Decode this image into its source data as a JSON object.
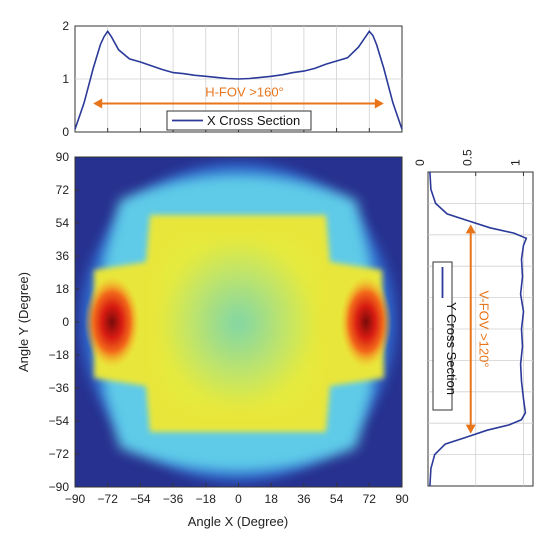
{
  "chart_data": [
    {
      "type": "line",
      "title": "",
      "xlabel": "",
      "ylabel": "",
      "xlim": [
        -90,
        90
      ],
      "ylim": [
        0,
        2
      ],
      "yticks": [
        "0",
        "1",
        "2"
      ],
      "legend": "bottom-center",
      "grid": true,
      "series": [
        {
          "name": "X Cross Section",
          "color": "#2b3a99",
          "x": [
            -90,
            -85,
            -80,
            -76,
            -74,
            -72,
            -70,
            -66,
            -60,
            -54,
            -48,
            -42,
            -36,
            -30,
            -24,
            -18,
            -12,
            -6,
            0,
            6,
            12,
            18,
            24,
            30,
            36,
            42,
            48,
            54,
            60,
            66,
            70,
            72,
            74,
            76,
            80,
            85,
            90
          ],
          "y": [
            0.05,
            0.55,
            1.2,
            1.65,
            1.8,
            1.9,
            1.8,
            1.55,
            1.38,
            1.32,
            1.25,
            1.18,
            1.12,
            1.1,
            1.07,
            1.05,
            1.03,
            1.01,
            1.0,
            1.01,
            1.03,
            1.05,
            1.08,
            1.12,
            1.15,
            1.2,
            1.28,
            1.34,
            1.4,
            1.6,
            1.8,
            1.9,
            1.82,
            1.65,
            1.2,
            0.55,
            0.05
          ]
        }
      ],
      "annotation": {
        "text": "H-FOV >160°",
        "from": -80,
        "to": 80,
        "y": 0.5,
        "color": "#e8751a"
      }
    },
    {
      "type": "heatmap",
      "xlabel": "Angle X (Degree)",
      "ylabel": "Angle Y (Degree)",
      "xlim": [
        -90,
        90
      ],
      "ylim": [
        -90,
        90
      ],
      "xticks": [
        "−90",
        "−72",
        "−54",
        "−36",
        "−18",
        "0",
        "18",
        "36",
        "54",
        "72",
        "90"
      ],
      "yticks": [
        "90",
        "72",
        "54",
        "36",
        "18",
        "0",
        "−18",
        "−36",
        "−54",
        "−72",
        "−90"
      ],
      "colormap": "jet",
      "hotspots": [
        {
          "x": -70,
          "y": 0
        },
        {
          "x": 70,
          "y": 0
        }
      ]
    },
    {
      "type": "line",
      "orientation": "vertical",
      "xlim": [
        0,
        1.1
      ],
      "xticks": [
        "0",
        "0.5",
        "1"
      ],
      "ylim": [
        -90,
        90
      ],
      "grid": true,
      "legend": "left",
      "series": [
        {
          "name": "Y Cross Section",
          "color": "#2b3a99",
          "y": [
            90,
            80,
            72,
            66,
            62,
            58,
            55,
            52,
            48,
            40,
            30,
            20,
            10,
            0,
            -10,
            -20,
            -30,
            -40,
            -48,
            -52,
            -55,
            -58,
            -62,
            -66,
            -72,
            -80,
            -90
          ],
          "x": [
            0.02,
            0.03,
            0.08,
            0.2,
            0.42,
            0.65,
            0.9,
            1.03,
            1.0,
            0.98,
            0.99,
            0.97,
            1.0,
            0.98,
            0.99,
            0.97,
            0.98,
            1.0,
            1.02,
            0.98,
            0.85,
            0.62,
            0.4,
            0.18,
            0.07,
            0.03,
            0.02
          ]
        }
      ],
      "annotation": {
        "text": "V-FOV >120°",
        "from": 60,
        "to": -60,
        "x": 0.5,
        "color": "#e8751a"
      }
    }
  ]
}
